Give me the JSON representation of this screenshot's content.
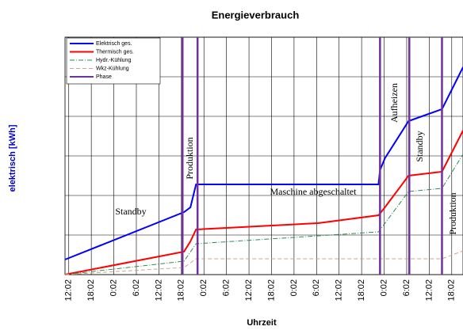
{
  "chart_data": {
    "type": "line",
    "title": "Energieverbrauch",
    "x_label": "Uhrzeit",
    "y_label": "elektrisch [kWh]",
    "xlim": [
      -1,
      105
    ],
    "xticks": [
      {
        "value": 0,
        "label": "12:02"
      },
      {
        "value": 6,
        "label": "18:02"
      },
      {
        "value": 12,
        "label": "0:02"
      },
      {
        "value": 18,
        "label": "6:02"
      },
      {
        "value": 24,
        "label": "12:02"
      },
      {
        "value": 30,
        "label": "18:02"
      },
      {
        "value": 36,
        "label": "0:02"
      },
      {
        "value": 42,
        "label": "6:02"
      },
      {
        "value": 48,
        "label": "12:02"
      },
      {
        "value": 54,
        "label": "18:02"
      },
      {
        "value": 60,
        "label": "0:02"
      },
      {
        "value": 66,
        "label": "6:02"
      },
      {
        "value": 72,
        "label": "12:02"
      },
      {
        "value": 78,
        "label": "18:02"
      },
      {
        "value": 84,
        "label": "0:02"
      },
      {
        "value": 90,
        "label": "6:02"
      },
      {
        "value": 96,
        "label": "12:02"
      },
      {
        "value": 102,
        "label": "18:02"
      }
    ],
    "ylim": [
      0,
      6
    ],
    "yticks": [
      0,
      1,
      2,
      3,
      4,
      5,
      6
    ],
    "grid": true,
    "legend": "top-left",
    "series": [
      {
        "name": "Elektrisch ges.",
        "color": "#0000ff",
        "dash": "solid",
        "x": [
          -1,
          30.7,
          32.4,
          33.9,
          82.5,
          82.9,
          84.2,
          90.5,
          99.4,
          105
        ],
        "values": [
          0.38,
          1.58,
          1.7,
          2.28,
          2.28,
          2.64,
          2.94,
          3.88,
          4.18,
          5.24
        ]
      },
      {
        "name": "Thermisch ges.",
        "color": "#ff0000",
        "dash": "solid",
        "x": [
          -1,
          30.7,
          32.4,
          33.9,
          66.4,
          82.5,
          84.2,
          90.5,
          99.4,
          105
        ],
        "values": [
          0,
          0.58,
          0.84,
          1.14,
          1.3,
          1.5,
          1.7,
          2.5,
          2.6,
          3.64
        ]
      },
      {
        "name": "Hydr.-Kühlung",
        "color": "#2e8b57",
        "dash": "dash-dot",
        "x": [
          -1,
          30.7,
          33.9,
          82.5,
          90.5,
          99.4,
          105
        ],
        "values": [
          0,
          0.34,
          0.78,
          1.08,
          2.1,
          2.18,
          3.04
        ]
      },
      {
        "name": "Wkz-Kühlung",
        "color": "#d2a28c",
        "dash": "dash",
        "x": [
          -1,
          30.7,
          33.9,
          99.4,
          105
        ],
        "values": [
          0,
          0.18,
          0.4,
          0.4,
          0.6
        ]
      },
      {
        "name": "Phase",
        "color": "#7030a0",
        "dash": "vertical",
        "x": [
          30.3,
          34.3,
          82.9,
          90.7,
          99.4
        ]
      }
    ],
    "annotations": [
      "Standby",
      "Produktion",
      "Maschine abgeschaltet",
      "Aufheizen",
      "Standby",
      "Produktion"
    ]
  }
}
